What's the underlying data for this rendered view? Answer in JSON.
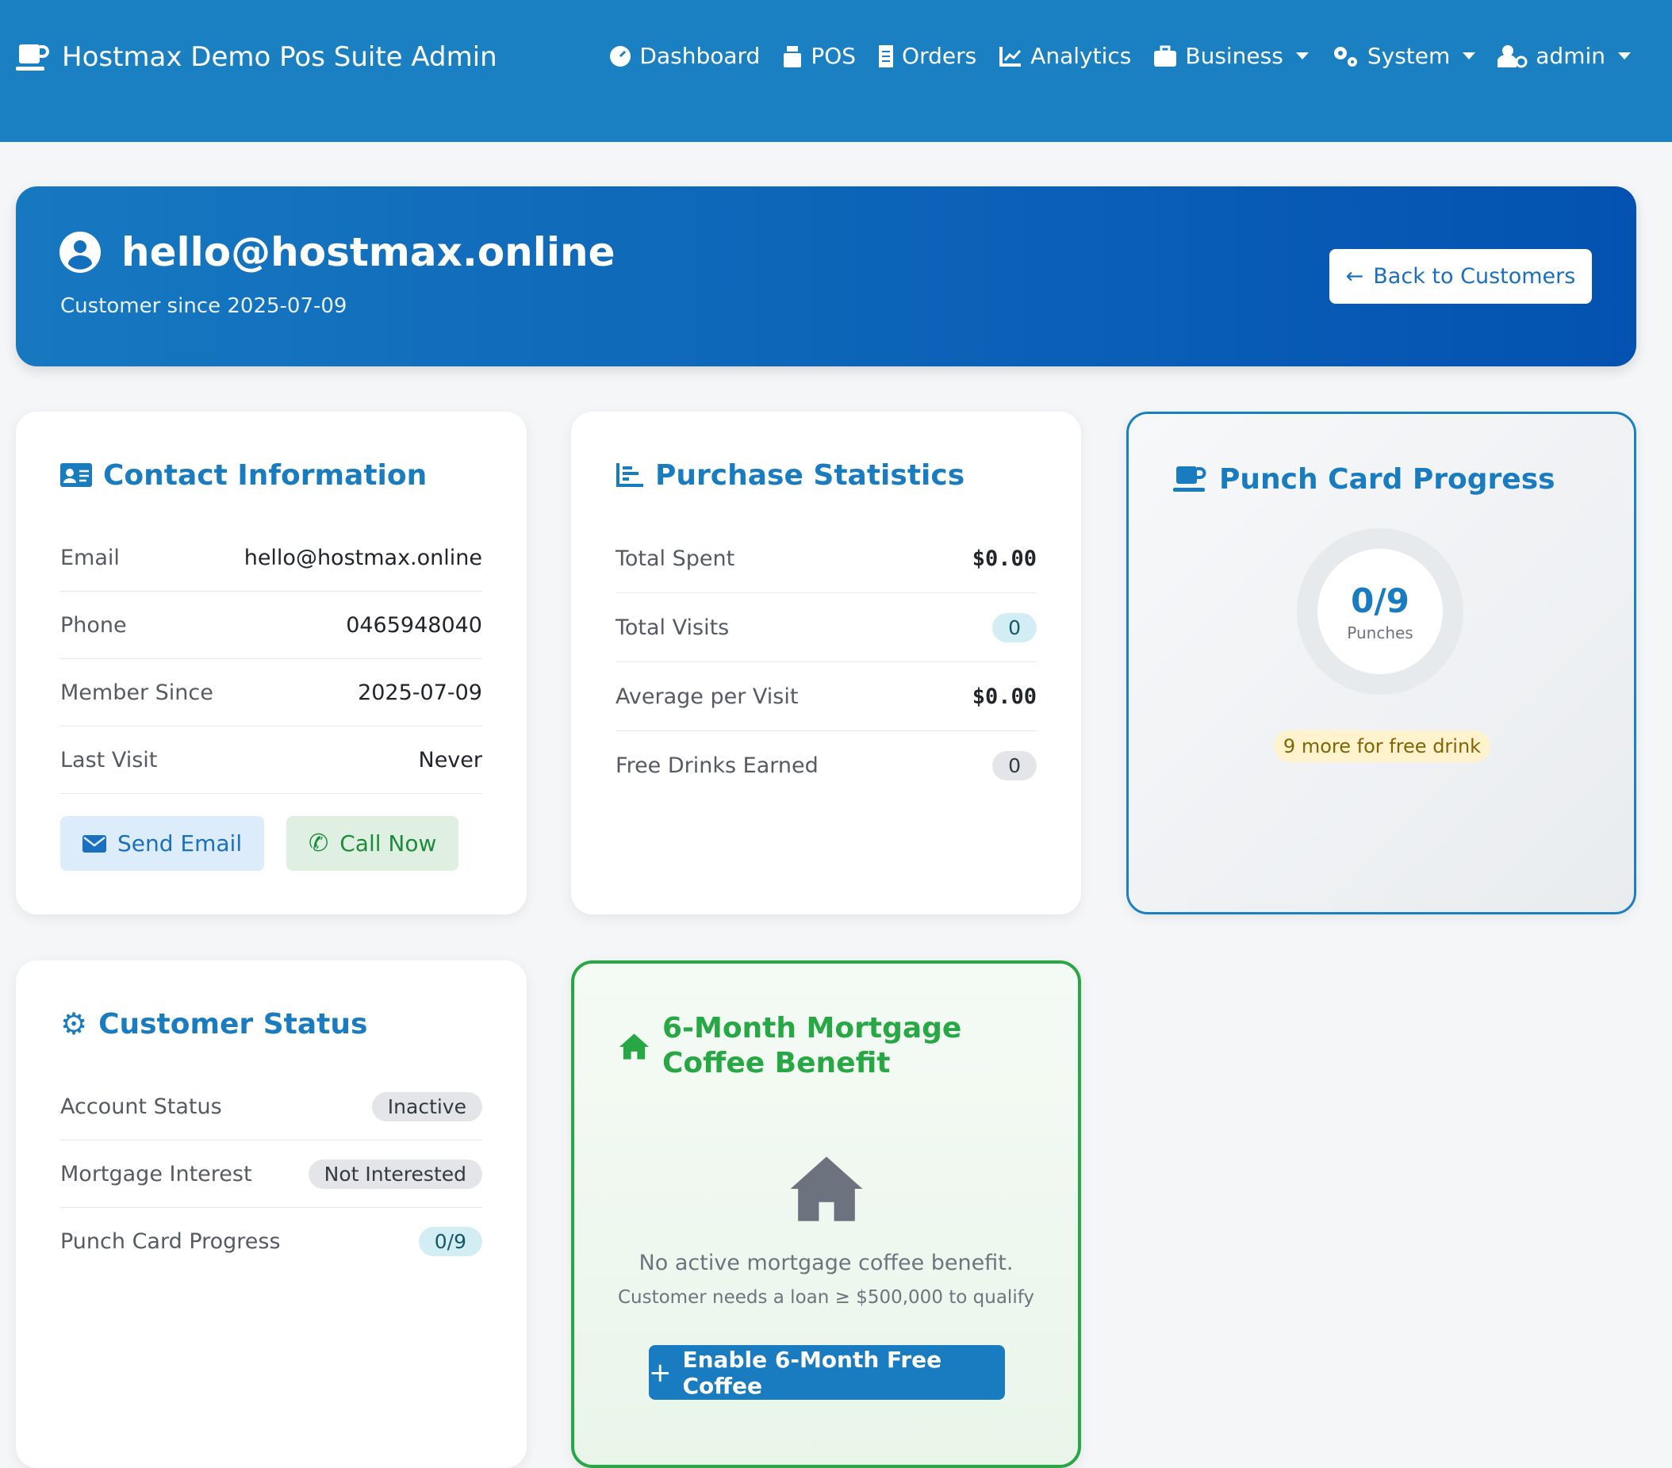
{
  "navbar": {
    "brand": "Hostmax Demo Pos Suite Admin",
    "items": [
      {
        "label": "Dashboard",
        "icon": "tachometer-icon"
      },
      {
        "label": "POS",
        "icon": "cash-register-icon"
      },
      {
        "label": "Orders",
        "icon": "receipt-icon"
      },
      {
        "label": "Analytics",
        "icon": "chart-line-icon"
      },
      {
        "label": "Business",
        "icon": "briefcase-icon",
        "dropdown": true
      },
      {
        "label": "System",
        "icon": "cogs-icon",
        "dropdown": true
      },
      {
        "label": "admin",
        "icon": "user-cog-icon",
        "dropdown": true
      }
    ]
  },
  "header": {
    "title": "hello@hostmax.online",
    "subtitle": "Customer since 2025-07-09",
    "back_label": "Back to Customers"
  },
  "contact": {
    "title": "Contact Information",
    "rows": [
      {
        "label": "Email",
        "value": "hello@hostmax.online"
      },
      {
        "label": "Phone",
        "value": "0465948040"
      },
      {
        "label": "Member Since",
        "value": "2025-07-09"
      },
      {
        "label": "Last Visit",
        "value": "Never"
      }
    ],
    "send_email": "Send Email",
    "call_now": "Call Now"
  },
  "purchase": {
    "title": "Purchase Statistics",
    "rows": [
      {
        "label": "Total Spent",
        "value": "$0.00"
      },
      {
        "label": "Total Visits",
        "value": "0"
      },
      {
        "label": "Average per Visit",
        "value": "$0.00"
      },
      {
        "label": "Free Drinks Earned",
        "value": "0"
      }
    ]
  },
  "punch": {
    "title": "Punch Card Progress",
    "value": "0/9",
    "unit": "Punches",
    "progress": 0,
    "badge": "9 more for free drink"
  },
  "status": {
    "title": "Customer Status",
    "rows": [
      {
        "label": "Account Status",
        "value": "Inactive"
      },
      {
        "label": "Mortgage Interest",
        "value": "Not Interested"
      },
      {
        "label": "Punch Card Progress",
        "value": "0/9"
      }
    ]
  },
  "mortgage": {
    "title": "6-Month Mortgage Coffee Benefit",
    "empty": "No active mortgage coffee benefit.",
    "hint": "Customer needs a loan ≥ $500,000 to qualify",
    "button": "Enable 6-Month Free Coffee"
  },
  "colors": {
    "primary": "#1a80c1",
    "success": "#28a745",
    "warning_bg": "#fff3cd"
  }
}
